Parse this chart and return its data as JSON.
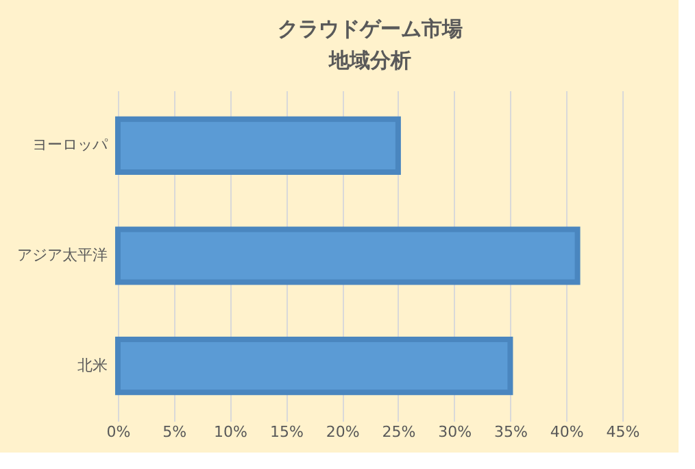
{
  "chart_data": {
    "type": "bar",
    "orientation": "horizontal",
    "title": "クラウドゲーム市場",
    "subtitle": "地域分析",
    "categories": [
      "ヨーロッパ",
      "アジア太平洋",
      "北米"
    ],
    "values": [
      25,
      41,
      35
    ],
    "color": "#5b9bd5",
    "xlim": [
      0,
      45
    ],
    "xticks": [
      {
        "value": 0,
        "label": "0%"
      },
      {
        "value": 5,
        "label": "5%"
      },
      {
        "value": 10,
        "label": "10%"
      },
      {
        "value": 15,
        "label": "15%"
      },
      {
        "value": 20,
        "label": "20%"
      },
      {
        "value": 25,
        "label": "25%"
      },
      {
        "value": 30,
        "label": "30%"
      },
      {
        "value": 35,
        "label": "35%"
      },
      {
        "value": 40,
        "label": "40%"
      },
      {
        "value": 45,
        "label": "45%"
      }
    ],
    "grid": "x"
  }
}
